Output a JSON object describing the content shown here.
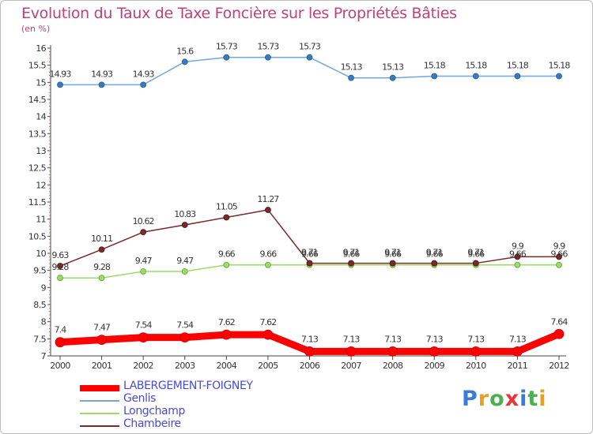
{
  "title": "Evolution du Taux de Taxe Foncière sur les Propriétés Bâties",
  "unit_label": "(en %)",
  "chart_data": {
    "type": "line",
    "title": "Evolution du Taux de Taxe Foncière sur les Propriétés Bâties",
    "ylabel": "(en %)",
    "xlabel": "",
    "x": [
      "2000",
      "2001",
      "2002",
      "2003",
      "2004",
      "2005",
      "2006",
      "2007",
      "2008",
      "2009",
      "2010",
      "2011",
      "2012"
    ],
    "ylim": [
      7,
      16
    ],
    "yticks": [
      "7",
      "7.5",
      "8",
      "8.5",
      "9",
      "9.5",
      "10",
      "10.5",
      "11",
      "11.5",
      "12",
      "12.5",
      "13",
      "13.5",
      "14",
      "14.5",
      "15",
      "15.5",
      "16"
    ],
    "grid": false,
    "series": [
      {
        "name": "LABERGEMENT-FOIGNEY",
        "color": "#ff0000",
        "values": [
          7.4,
          7.47,
          7.54,
          7.54,
          7.62,
          7.62,
          7.13,
          7.13,
          7.13,
          7.13,
          7.13,
          7.13,
          7.64
        ],
        "labels": [
          "7.4",
          "7.47",
          "7.54",
          "7.54",
          "7.62",
          "7.62",
          "7.13",
          "7.13",
          "7.13",
          "7.13",
          "7.13",
          "7.13",
          "7.64"
        ]
      },
      {
        "name": "Genlis",
        "color": "#6fa8dc",
        "values": [
          14.93,
          14.93,
          14.93,
          15.6,
          15.73,
          15.73,
          15.73,
          15.13,
          15.13,
          15.18,
          15.18,
          15.18,
          15.18
        ],
        "labels": [
          "14.93",
          "14.93",
          "14.93",
          "15.6",
          "15.73",
          "15.73",
          "15.73",
          "15.13",
          "15.13",
          "15.18",
          "15.18",
          "15.18",
          "15.18"
        ]
      },
      {
        "name": "Longchamp",
        "color": "#99dd66",
        "values": [
          9.28,
          9.28,
          9.47,
          9.47,
          9.66,
          9.66,
          9.66,
          9.66,
          9.66,
          9.66,
          9.66,
          9.66,
          9.66
        ],
        "labels": [
          "9.28",
          "9.28",
          "9.47",
          "9.47",
          "9.66",
          "9.66",
          "9.66",
          "9.66",
          "9.66",
          "9.66",
          "9.66",
          "9.66",
          "9.66"
        ]
      },
      {
        "name": "Chambeire",
        "color": "#7a2a2a",
        "values": [
          9.63,
          10.11,
          10.62,
          10.83,
          11.05,
          11.27,
          9.71,
          9.71,
          9.71,
          9.71,
          9.71,
          9.9,
          9.9
        ],
        "labels": [
          "9.63",
          "10.11",
          "10.62",
          "10.83",
          "11.05",
          "11.27",
          "9.71",
          "9.71",
          "9.71",
          "9.71",
          "9.71",
          "9.9",
          "9.9"
        ]
      }
    ]
  },
  "legend": [
    {
      "label": "LABERGEMENT-FOIGNEY",
      "color": "#ff0000"
    },
    {
      "label": "Genlis",
      "color": "#6fa8dc"
    },
    {
      "label": "Longchamp",
      "color": "#99dd66"
    },
    {
      "label": "Chambeire",
      "color": "#7a2a2a"
    }
  ],
  "logo": {
    "letters": [
      "P",
      "r",
      "o",
      "x",
      "i",
      "t",
      "i"
    ],
    "colors": [
      "#3a7bd5",
      "#e8a020",
      "#4caf50",
      "#e53935",
      "#3a7bd5",
      "#4caf50",
      "#e8a020"
    ]
  }
}
